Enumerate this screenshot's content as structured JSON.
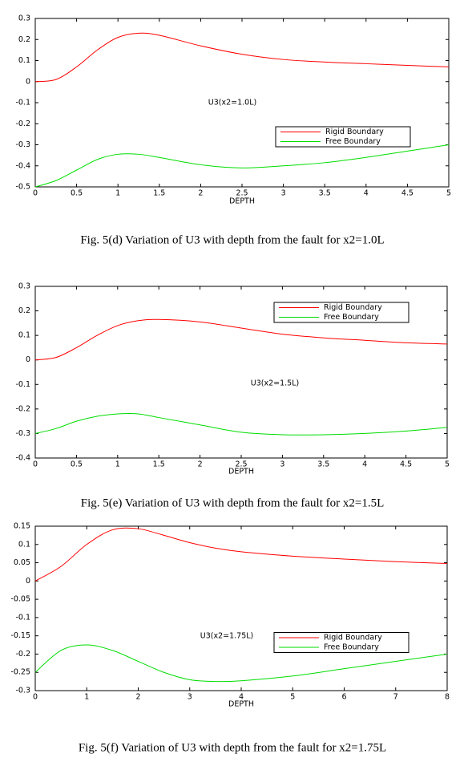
{
  "chart_data": [
    {
      "type": "line",
      "xlabel": "DEPTH",
      "annotation": "U3(x2=1.0L)",
      "caption": "Fig. 5(d) Variation of  U3 with  depth from  the  fault  for  x2=1.0L",
      "legend": "center right",
      "x": [
        0,
        0.25,
        0.5,
        0.75,
        1,
        1.25,
        1.5,
        2,
        2.5,
        3,
        3.5,
        4,
        4.5,
        5
      ],
      "series": [
        {
          "name": "Rigid Boundary",
          "color": "#ff0000",
          "values": [
            0,
            0.01,
            0.07,
            0.15,
            0.21,
            0.23,
            0.22,
            0.17,
            0.13,
            0.105,
            0.093,
            0.085,
            0.077,
            0.07
          ]
        },
        {
          "name": "Free Boundary",
          "color": "#00dd00",
          "values": [
            -0.5,
            -0.47,
            -0.42,
            -0.37,
            -0.345,
            -0.345,
            -0.36,
            -0.395,
            -0.41,
            -0.4,
            -0.385,
            -0.36,
            -0.33,
            -0.3
          ]
        }
      ],
      "xlim": [
        0,
        5
      ],
      "xticks": [
        0,
        0.5,
        1,
        1.5,
        2,
        2.5,
        3,
        3.5,
        4,
        4.5,
        5
      ],
      "ylim": [
        -0.5,
        0.3
      ],
      "yticks": [
        -0.5,
        -0.4,
        -0.3,
        -0.2,
        -0.1,
        0,
        0.1,
        0.2,
        0.3
      ]
    },
    {
      "type": "line",
      "xlabel": "DEPTH",
      "annotation": "U3(x2=1.5L)",
      "caption": "Fig. 5(e) Variation of  U3 with depth  from  the  fault  for  x2=1.5L",
      "legend": "upper right",
      "x": [
        0,
        0.25,
        0.5,
        0.75,
        1,
        1.25,
        1.5,
        2,
        2.5,
        3,
        3.5,
        4,
        4.5,
        5
      ],
      "series": [
        {
          "name": "Rigid Boundary",
          "color": "#ff0000",
          "values": [
            0,
            0.01,
            0.05,
            0.1,
            0.14,
            0.16,
            0.165,
            0.155,
            0.13,
            0.105,
            0.09,
            0.08,
            0.07,
            0.065
          ]
        },
        {
          "name": "Free Boundary",
          "color": "#00dd00",
          "values": [
            -0.3,
            -0.28,
            -0.25,
            -0.23,
            -0.22,
            -0.22,
            -0.235,
            -0.265,
            -0.295,
            -0.305,
            -0.305,
            -0.3,
            -0.29,
            -0.275
          ]
        }
      ],
      "xlim": [
        0,
        5
      ],
      "xticks": [
        0,
        0.5,
        1,
        1.5,
        2,
        2.5,
        3,
        3.5,
        4,
        4.5,
        5
      ],
      "ylim": [
        -0.4,
        0.3
      ],
      "yticks": [
        -0.4,
        -0.3,
        -0.2,
        -0.1,
        0,
        0.1,
        0.2,
        0.3
      ]
    },
    {
      "type": "line",
      "xlabel": "DEPTH",
      "annotation": "U3(x2=1.75L)",
      "caption": "Fig. 5(f) Variation of  U3 with depth  from  the  fault  for  x2=1.75L",
      "legend": "center right",
      "x": [
        0,
        0.5,
        1,
        1.5,
        2,
        2.5,
        3,
        3.5,
        4,
        5,
        6,
        7,
        8
      ],
      "series": [
        {
          "name": "Rigid Boundary",
          "color": "#ff0000",
          "values": [
            0,
            0.04,
            0.1,
            0.14,
            0.143,
            0.125,
            0.105,
            0.09,
            0.08,
            0.068,
            0.06,
            0.053,
            0.048
          ]
        },
        {
          "name": "Free Boundary",
          "color": "#00dd00",
          "values": [
            -0.25,
            -0.19,
            -0.175,
            -0.19,
            -0.22,
            -0.25,
            -0.27,
            -0.275,
            -0.273,
            -0.26,
            -0.24,
            -0.22,
            -0.2
          ]
        }
      ],
      "xlim": [
        0,
        8
      ],
      "xticks": [
        0,
        1,
        2,
        3,
        4,
        5,
        6,
        7,
        8
      ],
      "ylim": [
        -0.3,
        0.15
      ],
      "yticks": [
        -0.3,
        -0.25,
        -0.2,
        -0.15,
        -0.1,
        -0.05,
        0,
        0.05,
        0.1,
        0.15
      ]
    }
  ]
}
